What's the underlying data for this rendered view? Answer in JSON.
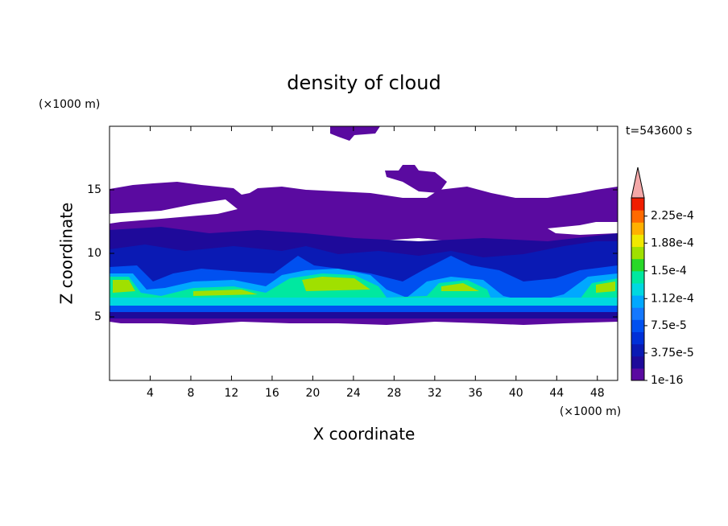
{
  "chart_data": {
    "type": "contour",
    "title": "density of cloud",
    "x_label": "X coordinate",
    "y_label": "Z coordinate",
    "x_unit": "(×1000 m)",
    "y_unit": "(×1000 m)",
    "time_label": "t=543600 s",
    "xlim": [
      0,
      50
    ],
    "ylim": [
      0,
      20
    ],
    "xticks": [
      4,
      8,
      12,
      16,
      20,
      24,
      28,
      32,
      36,
      40,
      44,
      48
    ],
    "yticks": [
      5,
      10,
      15
    ],
    "colorbar": {
      "clim": [
        1e-16,
        0.00025
      ],
      "ticks": [
        {
          "value": 1e-16,
          "label": "1e-16"
        },
        {
          "value": 3.75e-05,
          "label": "3.75e-5"
        },
        {
          "value": 7.5e-05,
          "label": "7.5e-5"
        },
        {
          "value": 0.000112,
          "label": "1.12e-4"
        },
        {
          "value": 0.00015,
          "label": "1.5e-4"
        },
        {
          "value": 0.000188,
          "label": "1.88e-4"
        },
        {
          "value": 0.000225,
          "label": "2.25e-4"
        }
      ],
      "colors": [
        "#5a0aa0",
        "#1e0a9a",
        "#0a1ab4",
        "#0030d8",
        "#0050f0",
        "#1478ff",
        "#00a8ff",
        "#00d8e0",
        "#00e8a0",
        "#28d828",
        "#a0e000",
        "#f0e800",
        "#ffb000",
        "#ff6a00",
        "#f01e00"
      ],
      "extend_color": "#f4a8a8"
    }
  }
}
